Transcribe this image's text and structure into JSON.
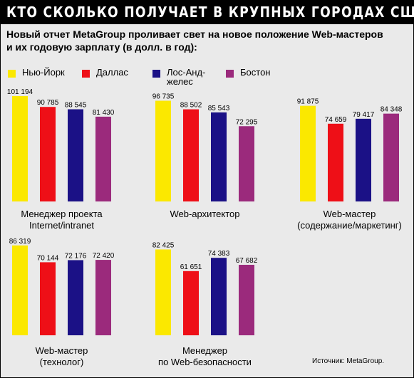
{
  "title": "КТО СКОЛЬКО ПОЛУЧАЕТ В КРУПНЫХ ГОРОДАХ США",
  "subtitle_lines": [
    "Новый отчет MetaGroup проливает свет на новое положение Web-мастеров",
    "и их годовую зарплату (в долл. в год):"
  ],
  "legend": [
    {
      "label": "Нью-Йорк",
      "color": "#fbe800"
    },
    {
      "label": "Даллас",
      "color": "#ee0f17"
    },
    {
      "label": "Лос-Анд-желес",
      "color": "#1b1186"
    },
    {
      "label": "Бостон",
      "color": "#9b2a7c"
    }
  ],
  "source": "Источник: MetaGroup.",
  "chart_data": [
    {
      "type": "bar",
      "label_lines": [
        "Менеджер проекта",
        "Internet/intranet"
      ],
      "categories": [
        "Нью-Йорк",
        "Даллас",
        "Лос-Анд-желес",
        "Бостон"
      ],
      "values": [
        101194,
        90785,
        88545,
        81430
      ],
      "value_labels": [
        "101 194",
        "90 785",
        "88 545",
        "81 430"
      ]
    },
    {
      "type": "bar",
      "label_lines": [
        "Web-архитектор"
      ],
      "categories": [
        "Нью-Йорк",
        "Даллас",
        "Лос-Анд-желес",
        "Бостон"
      ],
      "values": [
        96735,
        88502,
        85543,
        72295
      ],
      "value_labels": [
        "96 735",
        "88 502",
        "85 543",
        "72 295"
      ]
    },
    {
      "type": "bar",
      "label_lines": [
        "Web-мастер",
        "(содержание/маркетинг)"
      ],
      "categories": [
        "Нью-Йорк",
        "Даллас",
        "Лос-Анд-желес",
        "Бостон"
      ],
      "values": [
        91875,
        74659,
        79417,
        84348
      ],
      "value_labels": [
        "91 875",
        "74 659",
        "79 417",
        "84 348"
      ]
    },
    {
      "type": "bar",
      "label_lines": [
        "Web-мастер",
        "(технолог)"
      ],
      "categories": [
        "Нью-Йорк",
        "Даллас",
        "Лос-Анд-желес",
        "Бостон"
      ],
      "values": [
        86319,
        70144,
        72176,
        72420
      ],
      "value_labels": [
        "86 319",
        "70 144",
        "72 176",
        "72 420"
      ]
    },
    {
      "type": "bar",
      "label_lines": [
        "Менеджер",
        "по Web-безопасности"
      ],
      "categories": [
        "Нью-Йорк",
        "Даллас",
        "Лос-Анд-желес",
        "Бостон"
      ],
      "values": [
        82425,
        61651,
        74383,
        67682
      ],
      "value_labels": [
        "82 425",
        "61 651",
        "74 383",
        "67 682"
      ]
    }
  ]
}
